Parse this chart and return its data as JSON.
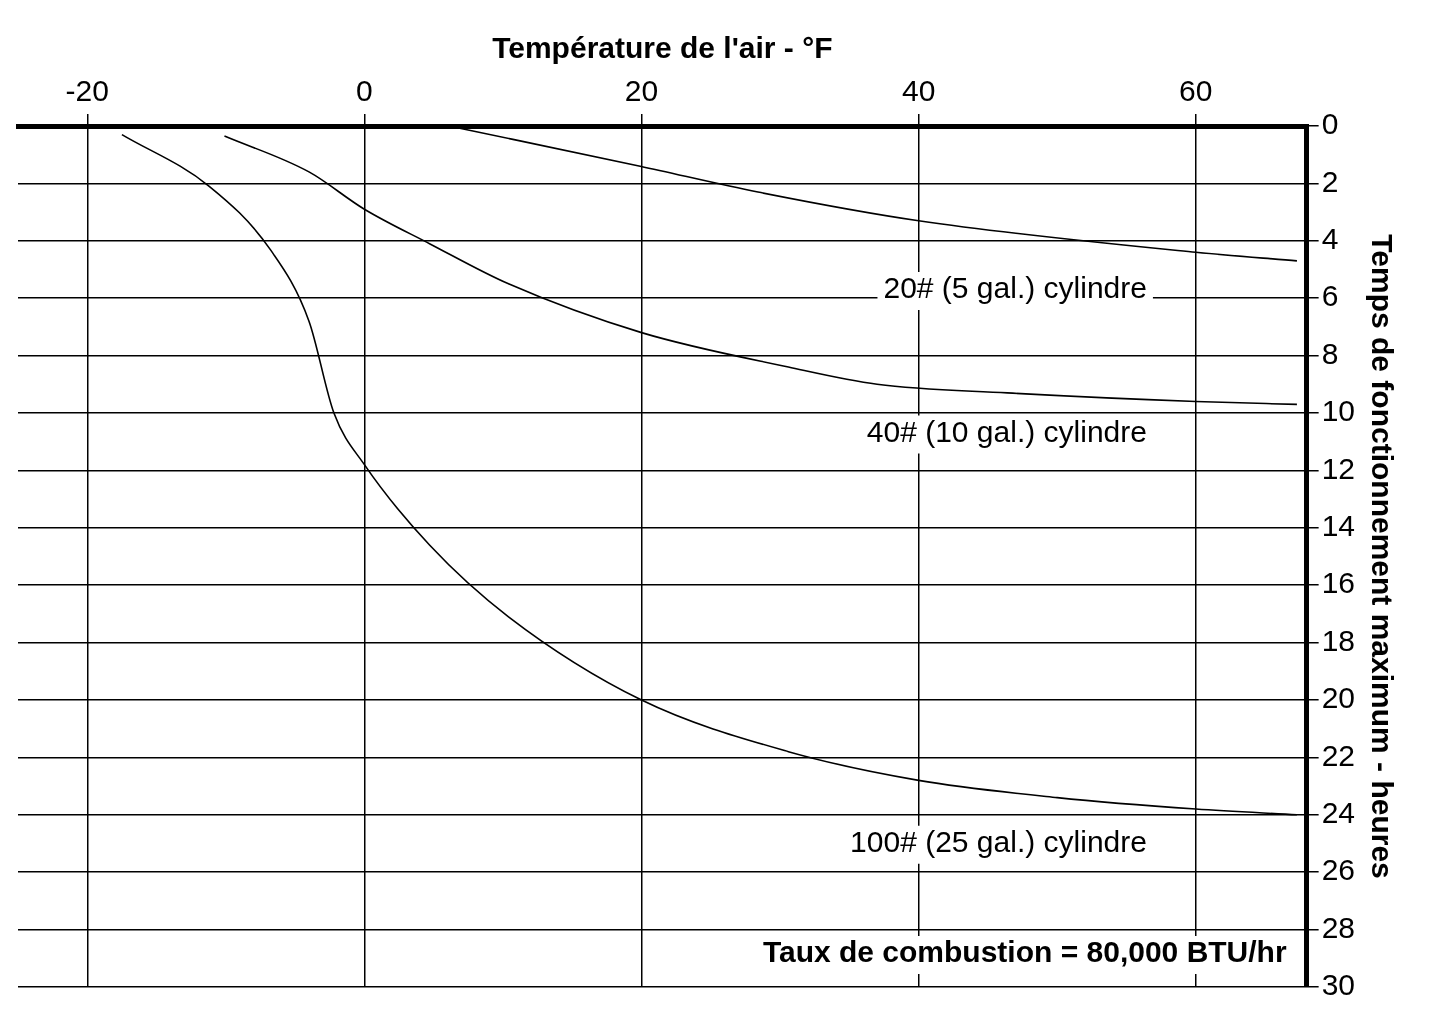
{
  "chart_data": {
    "type": "line",
    "xlabel": "Température de l'air - °F",
    "ylabel": "Temps de fonctionnement maximum - heures",
    "annotations": [
      "Taux de combustion = 80,000 BTU/hr",
      "20# (5 gal.) cylindre",
      "40# (10 gal.) cylindre",
      "100# (25 gal.) cylindre"
    ],
    "series": [
      {
        "color": "#000000",
        "x": [
          6.1,
          19.9,
          28.4,
          40,
          60,
          67.3
        ],
        "values": [
          0,
          1.4,
          2.3,
          3.3,
          4.4,
          4.7
        ]
      },
      {
        "color": "#000000",
        "x": [
          -10.1,
          -4,
          0,
          4.7,
          10.4,
          20,
          30.6,
          37,
          46.4,
          60,
          67.3
        ],
        "values": [
          0.35,
          1.6,
          2.9,
          4.1,
          5.5,
          7.2,
          8.4,
          9.0,
          9.3,
          9.6,
          9.7
        ]
      },
      {
        "color": "#000000",
        "x": [
          -17.5,
          -11.2,
          -6.8,
          -4,
          -2.2,
          0,
          4.7,
          10.4,
          20,
          30.6,
          40,
          50,
          60,
          67.3
        ],
        "values": [
          0.3,
          2.1,
          4.3,
          6.8,
          10,
          11.8,
          14.6,
          17.1,
          20,
          21.8,
          22.8,
          23.4,
          23.8,
          24
        ]
      }
    ],
    "xlim": [
      -25,
      68
    ],
    "xticks": [
      -20,
      0,
      20,
      40,
      60
    ],
    "ylim": [
      30,
      0
    ],
    "yticks": [
      0,
      2,
      4,
      6,
      8,
      10,
      12,
      14,
      16,
      18,
      20,
      22,
      24,
      26,
      28,
      30
    ],
    "grid": true,
    "legend": false,
    "marker": "none",
    "line_style": "solid"
  }
}
